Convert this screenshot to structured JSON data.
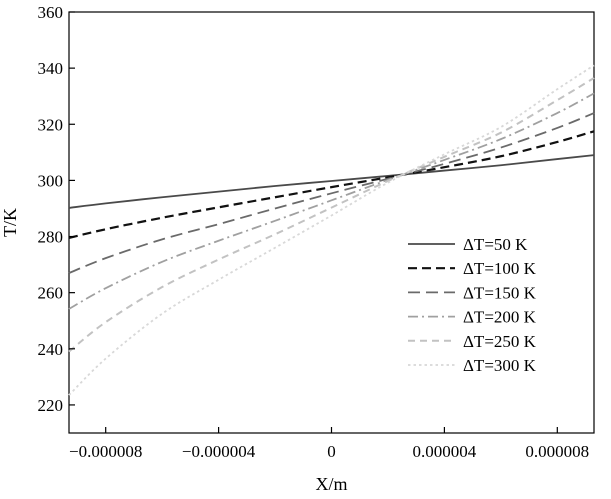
{
  "chart_data": {
    "type": "line",
    "xlabel": "X/m",
    "ylabel": "T/K",
    "xlim": [
      -9.3e-06,
      9.3e-06
    ],
    "ylim": [
      210,
      360
    ],
    "x_ticks": [
      -8e-06,
      -4e-06,
      0,
      4e-06,
      8e-06
    ],
    "x_tick_labels": [
      "−0.000008",
      "−0.000004",
      "0",
      "0.000004",
      "0.000008"
    ],
    "y_ticks": [
      220,
      240,
      260,
      280,
      300,
      320,
      340,
      360
    ],
    "y_tick_labels": [
      "220",
      "240",
      "260",
      "280",
      "300",
      "320",
      "340",
      "360"
    ],
    "grid": false,
    "legend_position": "right",
    "x": [
      -9.3e-06,
      -8e-06,
      -6e-06,
      -4e-06,
      -2e-06,
      0,
      2e-06,
      4e-06,
      6e-06,
      8e-06,
      9.3e-06
    ],
    "series": [
      {
        "name": "ΔT=50 K",
        "style": "solid",
        "color": "#4a4a4a",
        "values": [
          290.2,
          291.8,
          294.0,
          296.0,
          298.0,
          299.8,
          301.6,
          303.5,
          305.4,
          307.6,
          309.0
        ]
      },
      {
        "name": "ΔT=100 K",
        "style": "dashed",
        "color": "#111111",
        "values": [
          279.5,
          282.6,
          286.7,
          290.4,
          294.0,
          297.6,
          301.1,
          304.7,
          308.6,
          313.7,
          317.5
        ]
      },
      {
        "name": "ΔT=150 K",
        "style": "longdash",
        "color": "#6a6a6a",
        "values": [
          267.0,
          272.3,
          279.0,
          284.4,
          290.0,
          295.4,
          300.6,
          305.9,
          311.7,
          318.7,
          324.0
        ]
      },
      {
        "name": "ΔT=200 K",
        "style": "dashdot",
        "color": "#a0a0a0",
        "values": [
          254.2,
          261.6,
          271.0,
          278.5,
          285.6,
          292.9,
          300.2,
          307.3,
          314.7,
          324.0,
          331.0
        ]
      },
      {
        "name": "ΔT=250 K",
        "style": "dash",
        "color": "#c2c2c2",
        "values": [
          239.0,
          249.5,
          262.0,
          271.8,
          280.8,
          290.3,
          299.8,
          308.4,
          317.0,
          328.6,
          336.5
        ]
      },
      {
        "name": "ΔT=300 K",
        "style": "dotted",
        "color": "#d8d8d8",
        "values": [
          223.5,
          236.5,
          252.5,
          264.6,
          276.0,
          287.5,
          299.2,
          309.3,
          319.0,
          332.5,
          341.0
        ]
      }
    ]
  }
}
